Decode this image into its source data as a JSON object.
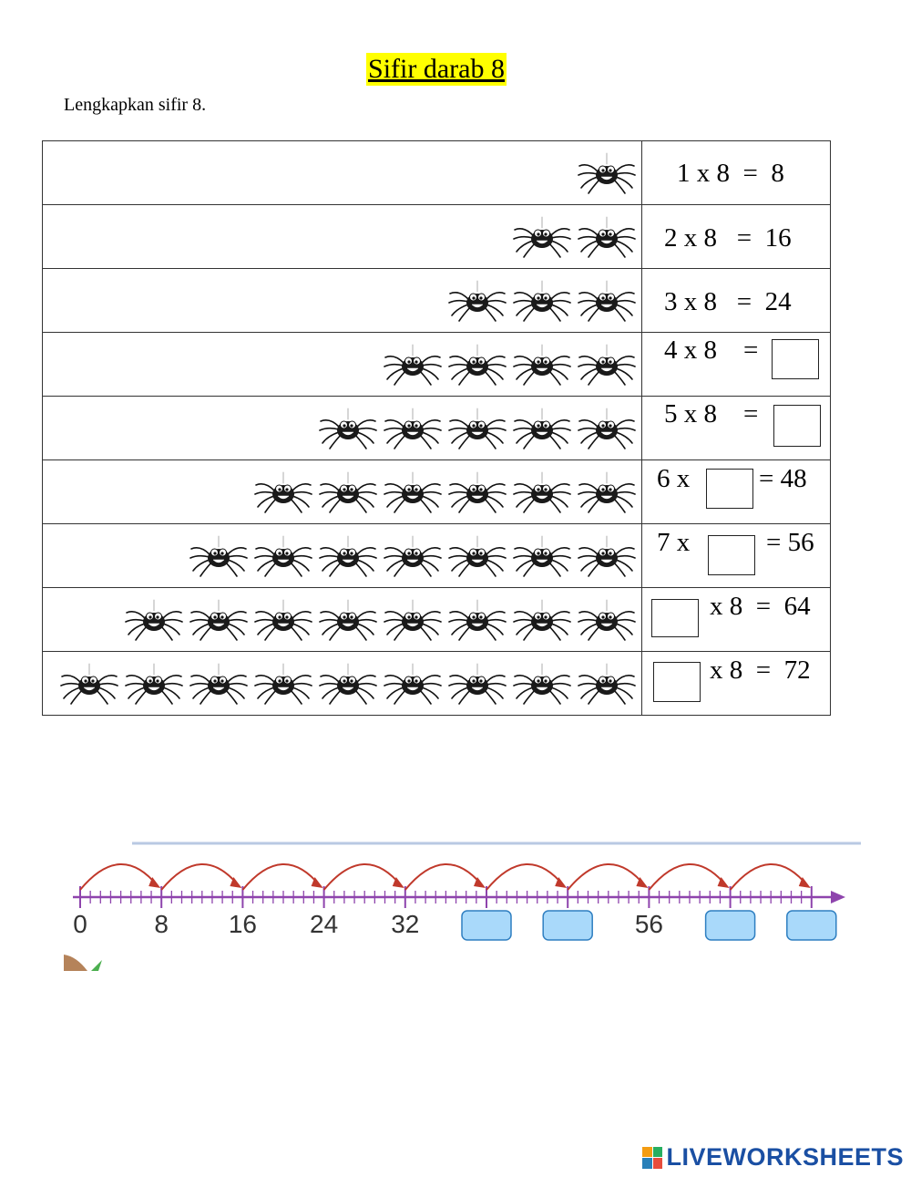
{
  "title": "Sifir darab 8",
  "instruction": "Lengkapkan sifir 8.",
  "rows": [
    {
      "spiders": 1,
      "parts": [
        "1 x 8  =  8"
      ]
    },
    {
      "spiders": 2,
      "parts": [
        "2 x 8   =  16"
      ]
    },
    {
      "spiders": 3,
      "parts": [
        "3 x 8   =  24"
      ]
    },
    {
      "spiders": 4,
      "parts": [
        "4 x 8    ="
      ]
    },
    {
      "spiders": 5,
      "parts": [
        "5 x 8    ="
      ]
    },
    {
      "spiders": 6,
      "parts": [
        "6 x",
        "= 48"
      ]
    },
    {
      "spiders": 7,
      "parts": [
        "7 x",
        "= 56"
      ]
    },
    {
      "spiders": 8,
      "parts": [
        "x 8  =  64"
      ]
    },
    {
      "spiders": 9,
      "parts": [
        "x 8  =  72"
      ]
    }
  ],
  "number_line": {
    "labels": [
      "0",
      "8",
      "16",
      "24",
      "32",
      "",
      "",
      "56",
      "",
      ""
    ],
    "blank_positions": [
      5,
      6,
      8,
      9
    ],
    "step": 8,
    "colors": {
      "line": "#8e44ad",
      "arc": "#c0392b",
      "box": "#a9d9fa"
    }
  },
  "brand": "LIVEWORKSHEETS"
}
